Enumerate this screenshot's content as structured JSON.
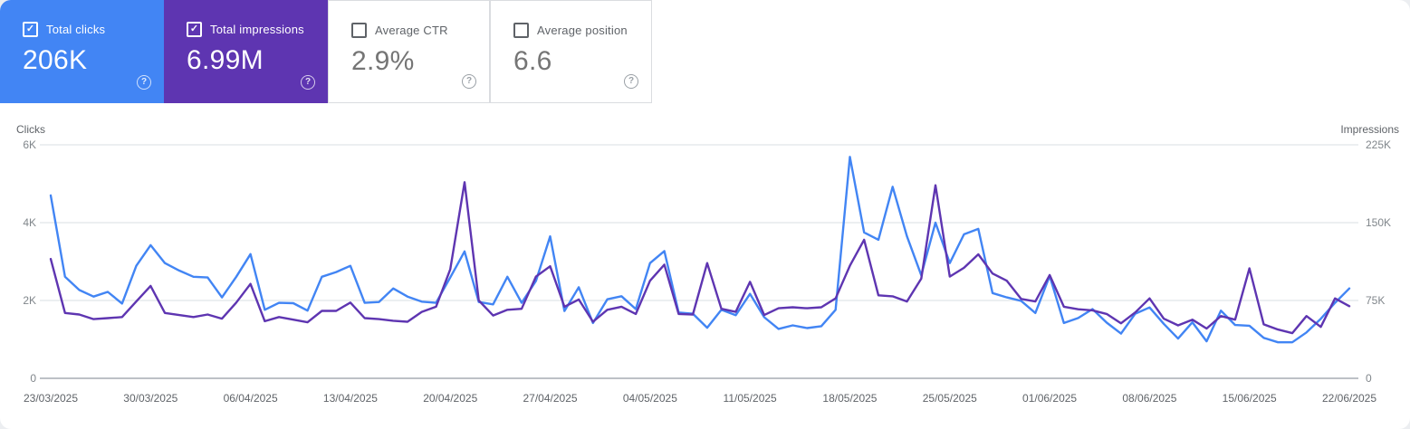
{
  "cards": [
    {
      "label": "Total clicks",
      "value": "206K",
      "checked": true,
      "active": true,
      "bg": "#4285f4",
      "help_icon": "question-mark"
    },
    {
      "label": "Total impressions",
      "value": "6.99M",
      "checked": true,
      "active": true,
      "bg": "#5e35b1",
      "help_icon": "question-mark"
    },
    {
      "label": "Average CTR",
      "value": "2.9%",
      "checked": false,
      "active": false,
      "bg": "#ffffff",
      "help_icon": "question-mark"
    },
    {
      "label": "Average position",
      "value": "6.6",
      "checked": false,
      "active": false,
      "bg": "#ffffff",
      "help_icon": "question-mark"
    }
  ],
  "chart_data": {
    "type": "line",
    "grid": "horizontal-only",
    "x_start": "23/03/2025",
    "x_end": "22/06/2025",
    "x_points": 92,
    "x_tick_labels": [
      "23/03/2025",
      "30/03/2025",
      "06/04/2025",
      "13/04/2025",
      "20/04/2025",
      "27/04/2025",
      "04/05/2025",
      "11/05/2025",
      "18/05/2025",
      "25/05/2025",
      "01/06/2025",
      "08/06/2025",
      "15/06/2025",
      "22/06/2025"
    ],
    "x_tick_day_indices": [
      0,
      7,
      14,
      21,
      28,
      35,
      42,
      49,
      56,
      63,
      70,
      77,
      84,
      91
    ],
    "left_axis": {
      "title": "Clicks",
      "ticks": [
        "0",
        "2K",
        "4K",
        "6K"
      ],
      "min": 0,
      "max": 6000
    },
    "right_axis": {
      "title": "Impressions",
      "ticks": [
        "0",
        "75K",
        "150K",
        "225K"
      ],
      "min": 0,
      "max": 225000
    },
    "series": [
      {
        "name": "Clicks",
        "axis": "left",
        "color": "#4285f4",
        "values": [
          4700,
          2610,
          2270,
          2100,
          2220,
          1920,
          2890,
          3420,
          2960,
          2770,
          2610,
          2590,
          2080,
          2610,
          3190,
          1760,
          1940,
          1930,
          1740,
          2610,
          2730,
          2890,
          1940,
          1960,
          2310,
          2100,
          1970,
          1940,
          2590,
          3260,
          1960,
          1900,
          2610,
          1940,
          2500,
          3650,
          1730,
          2340,
          1420,
          2030,
          2110,
          1780,
          2960,
          3270,
          1690,
          1660,
          1300,
          1760,
          1620,
          2170,
          1570,
          1270,
          1360,
          1290,
          1340,
          1760,
          5690,
          3750,
          3560,
          4920,
          3650,
          2650,
          4000,
          2960,
          3700,
          3840,
          2190,
          2080,
          1990,
          1680,
          2630,
          1420,
          1550,
          1780,
          1430,
          1150,
          1660,
          1820,
          1400,
          1020,
          1440,
          950,
          1740,
          1370,
          1350,
          1040,
          925,
          925,
          1180,
          1530,
          1940,
          2310
        ]
      },
      {
        "name": "Impressions",
        "axis": "right",
        "color": "#5e35b1",
        "values": [
          115000,
          63000,
          61500,
          57000,
          58000,
          59000,
          74000,
          89000,
          63000,
          61000,
          59000,
          61500,
          57500,
          73000,
          91000,
          55000,
          59000,
          56500,
          54000,
          65000,
          65000,
          73000,
          58000,
          57000,
          55500,
          54500,
          64000,
          69000,
          105000,
          189000,
          75000,
          60500,
          66000,
          67000,
          98000,
          108000,
          69000,
          76000,
          54500,
          66000,
          69000,
          62000,
          94000,
          109500,
          62000,
          61500,
          111000,
          67000,
          64000,
          93000,
          61000,
          67500,
          68500,
          67500,
          68500,
          77000,
          108500,
          133500,
          80000,
          79000,
          74000,
          96000,
          186000,
          98000,
          106500,
          119500,
          101000,
          94000,
          76500,
          74000,
          99500,
          69000,
          66500,
          65500,
          62000,
          53000,
          63500,
          77000,
          57500,
          51000,
          56500,
          48000,
          60000,
          56500,
          106000,
          52000,
          47000,
          43500,
          60000,
          49500,
          77000,
          69500
        ]
      }
    ]
  }
}
